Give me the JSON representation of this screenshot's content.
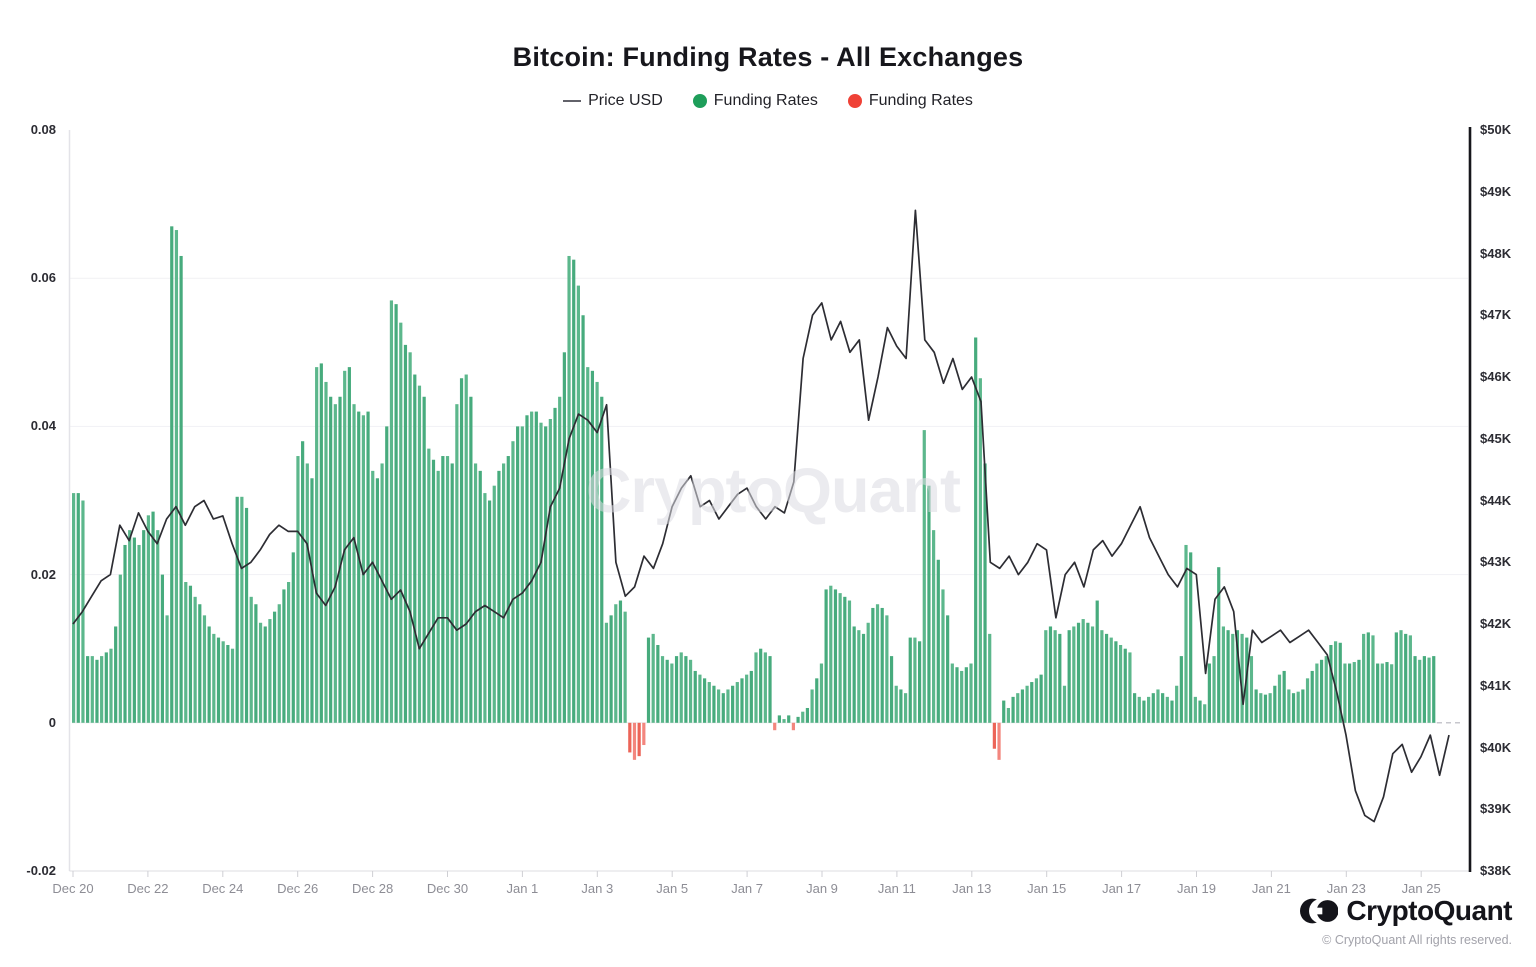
{
  "title": "Bitcoin: Funding Rates - All Exchanges",
  "legend": [
    {
      "label": "Price USD",
      "marker": "line",
      "color": "#62626a"
    },
    {
      "label": "Funding Rates",
      "marker": "dot",
      "color": "#1e9e5a"
    },
    {
      "label": "Funding Rates",
      "marker": "dot",
      "color": "#ef4136"
    }
  ],
  "watermark": "CryptoQuant",
  "footer": {
    "brand": "CryptoQuant",
    "copyright": "© CryptoQuant All rights reserved."
  },
  "chart_data": {
    "type": "bar",
    "title": "Bitcoin: Funding Rates - All Exchanges",
    "xlabel": "",
    "ylabel_left": "Funding Rates",
    "ylabel_right": "Price USD",
    "x_axis": {
      "ticks": [
        "Dec 20",
        "Dec 22",
        "Dec 24",
        "Dec 26",
        "Dec 28",
        "Dec 30",
        "Jan 1",
        "Jan 3",
        "Jan 5",
        "Jan 7",
        "Jan 9",
        "Jan 11",
        "Jan 13",
        "Jan 15",
        "Jan 17",
        "Jan 19",
        "Jan 21",
        "Jan 23",
        "Jan 25"
      ],
      "days_per_tick": 2
    },
    "y_left": {
      "ticks": [
        0.08,
        0.06,
        0.04,
        0.02,
        0,
        -0.02
      ],
      "tick_labels": [
        "0.08",
        "0.06",
        "0.04",
        "0.02",
        "0",
        "-0.02"
      ],
      "range": [
        -0.02,
        0.08
      ],
      "gridlines": [
        0.06,
        0.04,
        0.02
      ]
    },
    "y_right": {
      "ticks": [
        50,
        49,
        48,
        47,
        46,
        45,
        44,
        43,
        42,
        41,
        40,
        39,
        38
      ],
      "tick_labels": [
        "$50K",
        "$49K",
        "$48K",
        "$47K",
        "$46K",
        "$45K",
        "$44K",
        "$43K",
        "$42K",
        "$41K",
        "$40K",
        "$39K",
        "$38K"
      ],
      "range": [
        38,
        50
      ]
    },
    "last_value_dash_level": 0,
    "series": [
      {
        "name": "Funding Rates",
        "type": "bar",
        "samples_per_day": 8,
        "color_positive": "#5cb78c",
        "color_negative": "#f3867e",
        "values": [
          0.031,
          0.031,
          0.03,
          0.009,
          0.009,
          0.0085,
          0.009,
          0.0095,
          0.01,
          0.013,
          0.02,
          0.024,
          0.026,
          0.025,
          0.024,
          0.026,
          0.028,
          0.0285,
          0.026,
          0.02,
          0.0145,
          0.067,
          0.0665,
          0.063,
          0.019,
          0.0185,
          0.017,
          0.016,
          0.0145,
          0.013,
          0.012,
          0.0115,
          0.011,
          0.0105,
          0.01,
          0.0305,
          0.0305,
          0.029,
          0.017,
          0.016,
          0.0135,
          0.013,
          0.014,
          0.015,
          0.016,
          0.018,
          0.019,
          0.023,
          0.036,
          0.038,
          0.035,
          0.033,
          0.048,
          0.0485,
          0.046,
          0.044,
          0.043,
          0.044,
          0.0475,
          0.048,
          0.043,
          0.042,
          0.0415,
          0.042,
          0.034,
          0.033,
          0.035,
          0.04,
          0.057,
          0.0565,
          0.054,
          0.051,
          0.05,
          0.047,
          0.0455,
          0.044,
          0.037,
          0.0355,
          0.034,
          0.036,
          0.036,
          0.035,
          0.043,
          0.0465,
          0.047,
          0.044,
          0.035,
          0.034,
          0.031,
          0.03,
          0.032,
          0.034,
          0.035,
          0.036,
          0.038,
          0.04,
          0.04,
          0.0415,
          0.042,
          0.042,
          0.0405,
          0.04,
          0.041,
          0.0425,
          0.044,
          0.05,
          0.063,
          0.0625,
          0.059,
          0.055,
          0.048,
          0.0475,
          0.046,
          0.044,
          0.0135,
          0.0145,
          0.016,
          0.0165,
          0.015,
          -0.004,
          -0.005,
          -0.0045,
          -0.003,
          0.0115,
          0.012,
          0.0105,
          0.009,
          0.0085,
          0.008,
          0.009,
          0.0095,
          0.009,
          0.0085,
          0.007,
          0.0065,
          0.006,
          0.0055,
          0.005,
          0.0045,
          0.004,
          0.0045,
          0.005,
          0.0055,
          0.006,
          0.0065,
          0.007,
          0.0095,
          0.01,
          0.0095,
          0.009,
          -0.001,
          0.001,
          0.0005,
          0.001,
          -0.001,
          0.0008,
          0.0015,
          0.002,
          0.0045,
          0.006,
          0.008,
          0.018,
          0.0185,
          0.018,
          0.0175,
          0.017,
          0.0165,
          0.013,
          0.0125,
          0.012,
          0.0135,
          0.0155,
          0.016,
          0.0155,
          0.0145,
          0.009,
          0.005,
          0.0045,
          0.004,
          0.0115,
          0.0115,
          0.011,
          0.0395,
          0.032,
          0.026,
          0.022,
          0.018,
          0.0145,
          0.008,
          0.0075,
          0.007,
          0.0075,
          0.008,
          0.052,
          0.0465,
          0.035,
          0.012,
          -0.0035,
          -0.005,
          0.003,
          0.002,
          0.0035,
          0.004,
          0.0045,
          0.005,
          0.0055,
          0.006,
          0.0065,
          0.0125,
          0.013,
          0.0125,
          0.012,
          0.005,
          0.0125,
          0.013,
          0.0135,
          0.014,
          0.0135,
          0.013,
          0.0165,
          0.0125,
          0.012,
          0.0115,
          0.011,
          0.0105,
          0.01,
          0.0095,
          0.004,
          0.0035,
          0.003,
          0.0035,
          0.004,
          0.0045,
          0.004,
          0.0035,
          0.003,
          0.005,
          0.009,
          0.024,
          0.023,
          0.0035,
          0.003,
          0.0025,
          0.008,
          0.009,
          0.021,
          0.013,
          0.0125,
          0.012,
          0.0125,
          0.012,
          0.0115,
          0.009,
          0.0045,
          0.004,
          0.0038,
          0.004,
          0.005,
          0.0065,
          0.007,
          0.0045,
          0.004,
          0.0042,
          0.0045,
          0.006,
          0.007,
          0.008,
          0.0085,
          0.009,
          0.0105,
          0.011,
          0.0108,
          0.008,
          0.008,
          0.0082,
          0.0085,
          0.012,
          0.0122,
          0.0118,
          0.008,
          0.008,
          0.0082,
          0.0079,
          0.0122,
          0.0125,
          0.012,
          0.0118,
          0.009,
          0.0085,
          0.009,
          0.0088,
          0.009
        ]
      },
      {
        "name": "Price USD",
        "type": "line",
        "samples_per_day": 4,
        "unit": "$K",
        "color": "#2d2d33",
        "values": [
          42.0,
          42.2,
          42.45,
          42.7,
          42.8,
          43.6,
          43.35,
          43.8,
          43.5,
          43.3,
          43.7,
          43.9,
          43.6,
          43.9,
          44.0,
          43.7,
          43.75,
          43.3,
          42.9,
          43.0,
          43.2,
          43.45,
          43.6,
          43.5,
          43.5,
          43.3,
          42.5,
          42.3,
          42.6,
          43.2,
          43.4,
          42.8,
          43.0,
          42.7,
          42.4,
          42.55,
          42.2,
          41.6,
          41.85,
          42.1,
          42.1,
          41.9,
          42.0,
          42.2,
          42.3,
          42.2,
          42.1,
          42.4,
          42.5,
          42.7,
          43.0,
          43.9,
          44.2,
          45.0,
          45.4,
          45.3,
          45.1,
          45.55,
          43.0,
          42.45,
          42.6,
          43.1,
          42.9,
          43.3,
          43.9,
          44.2,
          44.4,
          43.9,
          44.0,
          43.7,
          43.9,
          44.1,
          44.2,
          43.9,
          43.7,
          43.9,
          43.8,
          44.3,
          46.3,
          47.0,
          47.2,
          46.6,
          46.9,
          46.4,
          46.6,
          45.3,
          46.0,
          46.8,
          46.5,
          46.3,
          48.7,
          46.6,
          46.4,
          45.9,
          46.3,
          45.8,
          46.0,
          45.6,
          43.0,
          42.9,
          43.1,
          42.8,
          43.0,
          43.3,
          43.2,
          42.1,
          42.8,
          43.0,
          42.6,
          43.2,
          43.35,
          43.1,
          43.3,
          43.6,
          43.9,
          43.4,
          43.1,
          42.8,
          42.6,
          42.9,
          42.8,
          41.2,
          42.4,
          42.6,
          42.2,
          40.7,
          41.9,
          41.7,
          41.8,
          41.9,
          41.7,
          41.8,
          41.9,
          41.7,
          41.5,
          40.9,
          40.2,
          39.3,
          38.9,
          38.8,
          39.2,
          39.9,
          40.05,
          39.6,
          39.85,
          40.2,
          39.55,
          40.2
        ]
      }
    ]
  }
}
